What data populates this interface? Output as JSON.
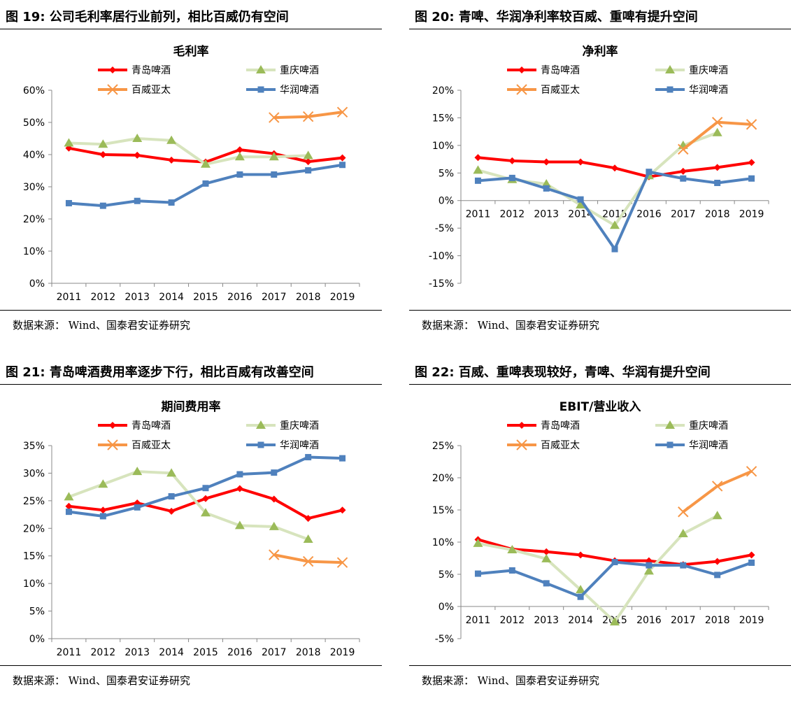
{
  "page": {
    "panels": [
      {
        "figure_title": "图 19: 公司毛利率居行业前列，相比百威仍有空间",
        "source": "数据来源： Wind、国泰君安证券研究"
      },
      {
        "figure_title": "图 20: 青啤、华润净利率较百威、重啤有提升空间",
        "source": "数据来源： Wind、国泰君安证券研究"
      },
      {
        "figure_title": "图 21: 青岛啤酒费用率逐步下行，相比百威有改善空间",
        "source": "数据来源： Wind、国泰君安证券研究"
      },
      {
        "figure_title": "图 22: 百威、重啤表现较好，青啤、华润有提升空间",
        "source": "数据来源： Wind、国泰君安证券研究"
      }
    ]
  },
  "chart_data": [
    {
      "type": "line",
      "title": "毛利率",
      "categories": [
        "2011",
        "2012",
        "2013",
        "2014",
        "2015",
        "2016",
        "2017",
        "2018",
        "2019"
      ],
      "ylim": [
        0,
        60
      ],
      "yticks": [
        0,
        10,
        20,
        30,
        40,
        50,
        60
      ],
      "ytick_labels": [
        "0%",
        "10%",
        "20%",
        "30%",
        "40%",
        "50%",
        "60%"
      ],
      "legend": "top",
      "series": [
        {
          "name": "青岛啤酒",
          "color": "#ff0000",
          "marker": "diamond",
          "values": [
            42,
            40,
            39.8,
            38.3,
            37.7,
            41.5,
            40.3,
            37.8,
            39
          ]
        },
        {
          "name": "重庆啤酒",
          "color": "#d7e4bd",
          "marker": "triangle",
          "marker_color": "#9bbb59",
          "values": [
            43.6,
            43.2,
            45,
            44.4,
            37,
            39.3,
            39.3,
            39.7,
            null
          ]
        },
        {
          "name": "百威亚太",
          "color": "#f79646",
          "marker": "x",
          "values": [
            null,
            null,
            null,
            null,
            null,
            null,
            51.5,
            51.8,
            53.2
          ]
        },
        {
          "name": "华润啤酒",
          "color": "#4f81bd",
          "marker": "square",
          "values": [
            24.9,
            24.1,
            25.6,
            25.1,
            31,
            33.8,
            33.8,
            35.1,
            36.8
          ]
        }
      ]
    },
    {
      "type": "line",
      "title": "净利率",
      "categories": [
        "2011",
        "2012",
        "2013",
        "2014",
        "2015",
        "2016",
        "2017",
        "2018",
        "2019"
      ],
      "ylim": [
        -15,
        20
      ],
      "yticks": [
        -15,
        -10,
        -5,
        0,
        5,
        10,
        15,
        20
      ],
      "ytick_labels": [
        "-15%",
        "-10%",
        "-5%",
        "0%",
        "5%",
        "10%",
        "15%",
        "20%"
      ],
      "legend": "top",
      "series": [
        {
          "name": "青岛啤酒",
          "color": "#ff0000",
          "marker": "diamond",
          "values": [
            7.8,
            7.2,
            7,
            7,
            5.9,
            4.3,
            5.3,
            6,
            6.9
          ]
        },
        {
          "name": "重庆啤酒",
          "color": "#d7e4bd",
          "marker": "triangle",
          "marker_color": "#9bbb59",
          "values": [
            5.5,
            3.8,
            3,
            -0.8,
            -4.5,
            4.5,
            10,
            12.3,
            null
          ]
        },
        {
          "name": "百威亚太",
          "color": "#f79646",
          "marker": "x",
          "values": [
            null,
            null,
            null,
            null,
            null,
            null,
            9.3,
            14.2,
            13.8
          ]
        },
        {
          "name": "华润啤酒",
          "color": "#4f81bd",
          "marker": "square",
          "values": [
            3.6,
            4.1,
            2.2,
            0.2,
            -8.8,
            5.2,
            4,
            3.2,
            4
          ]
        }
      ]
    },
    {
      "type": "line",
      "title": "期间费用率",
      "categories": [
        "2011",
        "2012",
        "2013",
        "2014",
        "2015",
        "2016",
        "2017",
        "2018",
        "2019"
      ],
      "ylim": [
        0,
        35
      ],
      "yticks": [
        0,
        5,
        10,
        15,
        20,
        25,
        30,
        35
      ],
      "ytick_labels": [
        "0%",
        "5%",
        "10%",
        "15%",
        "20%",
        "25%",
        "30%",
        "35%"
      ],
      "legend": "top",
      "series": [
        {
          "name": "青岛啤酒",
          "color": "#ff0000",
          "marker": "diamond",
          "values": [
            24,
            23.3,
            24.6,
            23.1,
            25.4,
            27.2,
            25.3,
            21.8,
            23.3
          ]
        },
        {
          "name": "重庆啤酒",
          "color": "#d7e4bd",
          "marker": "triangle",
          "marker_color": "#9bbb59",
          "values": [
            25.7,
            28,
            30.3,
            30,
            22.8,
            20.5,
            20.3,
            18,
            null
          ]
        },
        {
          "name": "百威亚太",
          "color": "#f79646",
          "marker": "x",
          "values": [
            null,
            null,
            null,
            null,
            null,
            null,
            15.2,
            14,
            13.8
          ]
        },
        {
          "name": "华润啤酒",
          "color": "#4f81bd",
          "marker": "square",
          "values": [
            23,
            22.2,
            23.8,
            25.8,
            27.3,
            29.8,
            30.1,
            32.9,
            32.7
          ]
        }
      ]
    },
    {
      "type": "line",
      "title": "EBIT/营业收入",
      "categories": [
        "2011",
        "2012",
        "2013",
        "2014",
        "2015",
        "2016",
        "2017",
        "2018",
        "2019"
      ],
      "ylim": [
        -5,
        25
      ],
      "yticks": [
        -5,
        0,
        5,
        10,
        15,
        20,
        25
      ],
      "ytick_labels": [
        "-5%",
        "0%",
        "5%",
        "10%",
        "15%",
        "20%",
        "25%"
      ],
      "legend": "top",
      "series": [
        {
          "name": "青岛啤酒",
          "color": "#ff0000",
          "marker": "diamond",
          "values": [
            10.4,
            8.9,
            8.5,
            8,
            7.1,
            7.1,
            6.5,
            7,
            8
          ]
        },
        {
          "name": "重庆啤酒",
          "color": "#d7e4bd",
          "marker": "triangle",
          "marker_color": "#9bbb59",
          "values": [
            9.8,
            8.8,
            7.4,
            2.6,
            -2.4,
            5.5,
            11.3,
            14.1,
            null
          ]
        },
        {
          "name": "百威亚太",
          "color": "#f79646",
          "marker": "x",
          "values": [
            null,
            null,
            null,
            null,
            null,
            null,
            14.7,
            18.7,
            21
          ]
        },
        {
          "name": "华润啤酒",
          "color": "#4f81bd",
          "marker": "square",
          "values": [
            5.1,
            5.6,
            3.6,
            1.5,
            6.9,
            6.4,
            6.4,
            4.9,
            6.8
          ]
        }
      ]
    }
  ]
}
